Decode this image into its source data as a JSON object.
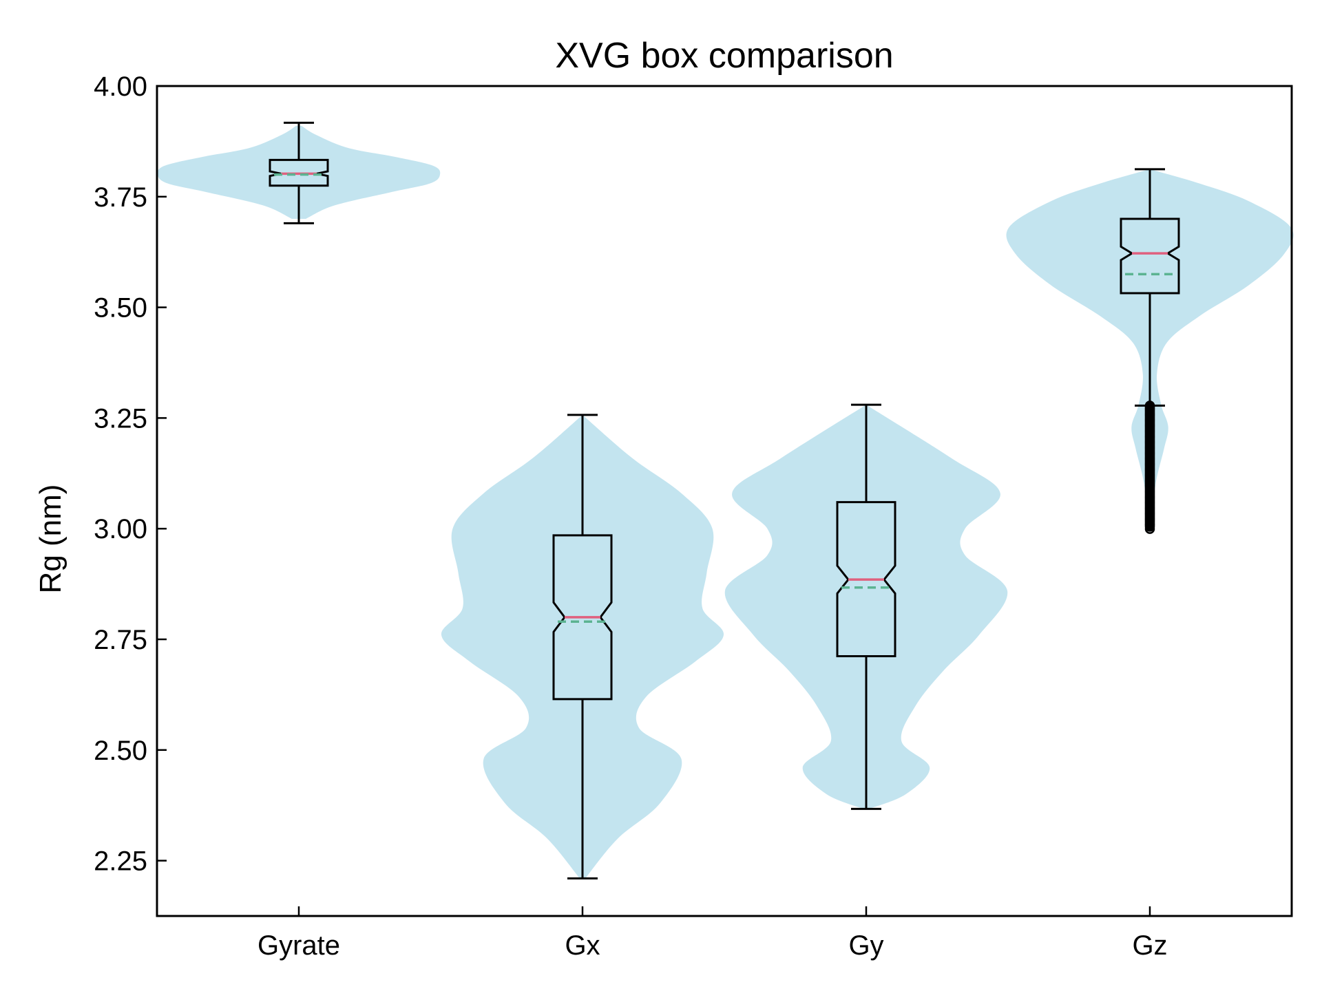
{
  "chart_data": {
    "type": "violin",
    "title": "XVG box comparison",
    "xlabel": "",
    "ylabel": "Rg (nm)",
    "ylim": [
      2.125,
      4.0
    ],
    "yticks": [
      "2.25",
      "2.50",
      "2.75",
      "3.00",
      "3.25",
      "3.50",
      "3.75",
      "4.00"
    ],
    "categories": [
      "Gyrate",
      "Gx",
      "Gy",
      "Gz"
    ],
    "grid": false,
    "colors": {
      "violin": "#c3e4ef",
      "box_edge": "#000000",
      "median": "#e0607e",
      "mean": "#5bb391"
    },
    "series": [
      {
        "category": "Gyrate",
        "whisker_low": 3.69,
        "q1": 3.775,
        "median": 3.802,
        "mean": 3.8,
        "q3": 3.833,
        "whisker_high": 3.917,
        "outliers": [],
        "density": [
          [
            3.7,
            0.05
          ],
          [
            3.73,
            0.25
          ],
          [
            3.76,
            0.65
          ],
          [
            3.78,
            0.93
          ],
          [
            3.8,
            1.0
          ],
          [
            3.82,
            0.95
          ],
          [
            3.84,
            0.68
          ],
          [
            3.86,
            0.35
          ],
          [
            3.89,
            0.12
          ],
          [
            3.91,
            0.02
          ]
        ]
      },
      {
        "category": "Gx",
        "whisker_low": 2.21,
        "q1": 2.615,
        "median": 2.8,
        "mean": 2.79,
        "q3": 2.985,
        "whisker_high": 3.257,
        "outliers": [],
        "density": [
          [
            2.21,
            0.02
          ],
          [
            2.3,
            0.25
          ],
          [
            2.38,
            0.55
          ],
          [
            2.48,
            0.7
          ],
          [
            2.55,
            0.4
          ],
          [
            2.62,
            0.45
          ],
          [
            2.7,
            0.8
          ],
          [
            2.76,
            1.0
          ],
          [
            2.82,
            0.85
          ],
          [
            2.9,
            0.88
          ],
          [
            3.0,
            0.92
          ],
          [
            3.08,
            0.7
          ],
          [
            3.16,
            0.35
          ],
          [
            3.257,
            0.0
          ]
        ]
      },
      {
        "category": "Gy",
        "whisker_low": 2.367,
        "q1": 2.712,
        "median": 2.885,
        "mean": 2.867,
        "q3": 3.06,
        "whisker_high": 3.28,
        "outliers": [],
        "density": [
          [
            2.367,
            0.02
          ],
          [
            2.4,
            0.28
          ],
          [
            2.46,
            0.45
          ],
          [
            2.52,
            0.25
          ],
          [
            2.6,
            0.35
          ],
          [
            2.68,
            0.55
          ],
          [
            2.76,
            0.8
          ],
          [
            2.86,
            1.0
          ],
          [
            2.94,
            0.7
          ],
          [
            3.0,
            0.7
          ],
          [
            3.08,
            0.95
          ],
          [
            3.16,
            0.6
          ],
          [
            3.28,
            0.0
          ]
        ]
      },
      {
        "category": "Gz",
        "whisker_low": 3.278,
        "q1": 3.532,
        "median": 3.622,
        "mean": 3.575,
        "q3": 3.7,
        "whisker_high": 3.812,
        "outliers_range": [
          2.99,
          3.278
        ],
        "outliers": [
          2.99,
          3.0,
          3.02,
          3.04,
          3.06,
          3.08,
          3.1,
          3.12,
          3.14,
          3.16,
          3.18,
          3.2,
          3.22,
          3.24,
          3.26
        ],
        "density": [
          [
            2.99,
            0.0
          ],
          [
            3.1,
            0.04
          ],
          [
            3.18,
            0.1
          ],
          [
            3.23,
            0.13
          ],
          [
            3.28,
            0.08
          ],
          [
            3.35,
            0.05
          ],
          [
            3.42,
            0.12
          ],
          [
            3.48,
            0.35
          ],
          [
            3.55,
            0.7
          ],
          [
            3.62,
            0.95
          ],
          [
            3.68,
            1.0
          ],
          [
            3.74,
            0.7
          ],
          [
            3.78,
            0.35
          ],
          [
            3.812,
            0.0
          ]
        ]
      }
    ]
  }
}
